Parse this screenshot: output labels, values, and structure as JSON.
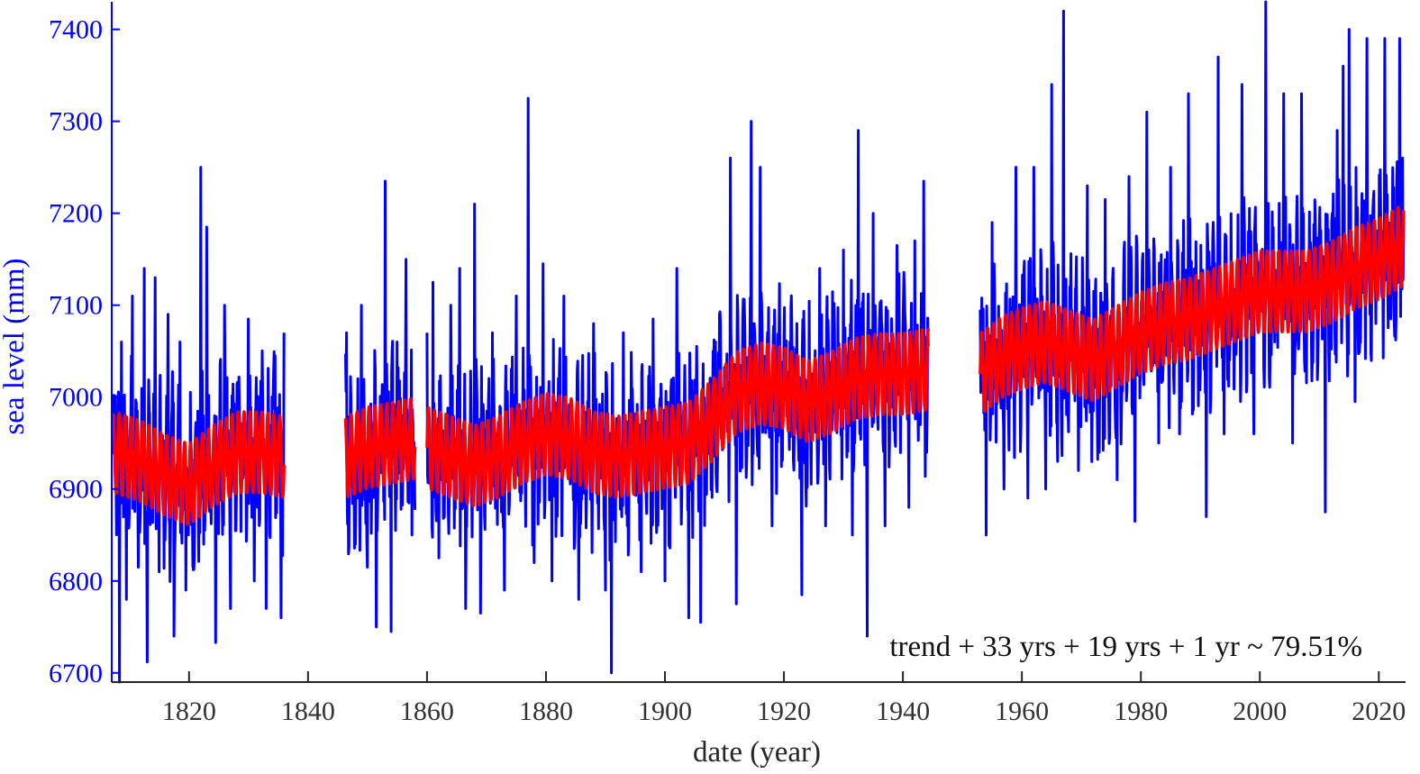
{
  "chart_data": {
    "type": "line",
    "title": "",
    "xlabel": "date (year)",
    "ylabel": "sea level (mm)",
    "xlim": [
      1807,
      2024.5
    ],
    "ylim": [
      6690,
      7430
    ],
    "x_ticks": [
      1820,
      1840,
      1860,
      1880,
      1900,
      1920,
      1940,
      1960,
      1980,
      2000,
      2020
    ],
    "y_ticks": [
      6700,
      6800,
      6900,
      7000,
      7100,
      7200,
      7300,
      7400
    ],
    "grid": false,
    "annotation": "trend + 33 yrs + 19 yrs + 1 yr ~ 79.51%",
    "colors": {
      "observed": "#0000ff",
      "model": "#ff0000",
      "axis_y": "#0000ff",
      "axis_x": "#262626"
    },
    "series": [
      {
        "role": "observed",
        "color": "#0000ff",
        "segments": [
          [
            1807.3,
            1836.0
          ],
          [
            1846.3,
            1858.0
          ],
          [
            1860.0,
            1944.3
          ],
          [
            1953.0,
            2024.2
          ]
        ],
        "points": [
          [
            1807.5,
            6940
          ],
          [
            1808.3,
            6690
          ],
          [
            1808.6,
            7060
          ],
          [
            1809.5,
            6780
          ],
          [
            1810.5,
            7110
          ],
          [
            1811.5,
            6815
          ],
          [
            1812.5,
            7140
          ],
          [
            1813.0,
            6712
          ],
          [
            1814.3,
            7130
          ],
          [
            1815.0,
            6810
          ],
          [
            1816.5,
            7090
          ],
          [
            1817.5,
            6740
          ],
          [
            1818.5,
            7060
          ],
          [
            1819.5,
            6790
          ],
          [
            1822.0,
            7250
          ],
          [
            1822.5,
            6840
          ],
          [
            1823.0,
            7185
          ],
          [
            1824.5,
            6733
          ],
          [
            1826.0,
            7100
          ],
          [
            1827.0,
            6770
          ],
          [
            1830.0,
            7085
          ],
          [
            1831.0,
            6800
          ],
          [
            1833.0,
            6770
          ],
          [
            1834.5,
            7045
          ],
          [
            1835.5,
            6760
          ],
          [
            1836.0,
            7070
          ],
          [
            1846.5,
            7070
          ],
          [
            1848.0,
            6840
          ],
          [
            1849.0,
            7100
          ],
          [
            1850.0,
            6815
          ],
          [
            1851.5,
            6750
          ],
          [
            1853.0,
            7235
          ],
          [
            1854.0,
            6745
          ],
          [
            1855.0,
            7060
          ],
          [
            1856.5,
            7150
          ],
          [
            1857.5,
            6850
          ],
          [
            1860.0,
            7070
          ],
          [
            1860.8,
            6860
          ],
          [
            1861.0,
            7125
          ],
          [
            1862.0,
            6825
          ],
          [
            1864.0,
            7100
          ],
          [
            1865.5,
            7140
          ],
          [
            1866.5,
            6770
          ],
          [
            1868.0,
            7210
          ],
          [
            1869.0,
            6765
          ],
          [
            1871.0,
            7070
          ],
          [
            1873.0,
            6790
          ],
          [
            1875.0,
            7110
          ],
          [
            1877.0,
            7325
          ],
          [
            1878.0,
            6820
          ],
          [
            1879.5,
            7145
          ],
          [
            1881.0,
            6800
          ],
          [
            1883.0,
            7110
          ],
          [
            1885.5,
            6780
          ],
          [
            1888.0,
            7080
          ],
          [
            1890.0,
            6790
          ],
          [
            1891.0,
            6700
          ],
          [
            1893.0,
            7070
          ],
          [
            1896.0,
            6810
          ],
          [
            1898.0,
            7085
          ],
          [
            1900.0,
            6800
          ],
          [
            1902.0,
            7140
          ],
          [
            1904.0,
            6760
          ],
          [
            1906.0,
            6755
          ],
          [
            1908.5,
            7060
          ],
          [
            1911.0,
            7260
          ],
          [
            1912.0,
            6775
          ],
          [
            1914.5,
            7300
          ],
          [
            1916.0,
            7250
          ],
          [
            1918.0,
            6860
          ],
          [
            1921.0,
            7060
          ],
          [
            1923.0,
            6785
          ],
          [
            1926.0,
            7140
          ],
          [
            1927.0,
            6860
          ],
          [
            1930.0,
            7160
          ],
          [
            1931.5,
            6850
          ],
          [
            1932.5,
            7290
          ],
          [
            1934.0,
            6740
          ],
          [
            1935.0,
            7200
          ],
          [
            1937.0,
            6860
          ],
          [
            1939.0,
            7165
          ],
          [
            1941.0,
            6880
          ],
          [
            1942.0,
            7170
          ],
          [
            1943.5,
            7235
          ],
          [
            1944.0,
            6940
          ],
          [
            1953.0,
            7095
          ],
          [
            1954.0,
            6850
          ],
          [
            1955.0,
            7190
          ],
          [
            1957.0,
            6900
          ],
          [
            1959.0,
            7250
          ],
          [
            1961.0,
            6890
          ],
          [
            1962.0,
            7250
          ],
          [
            1964.0,
            6900
          ],
          [
            1965.0,
            7340
          ],
          [
            1966.0,
            6930
          ],
          [
            1967.0,
            7420
          ],
          [
            1969.5,
            6920
          ],
          [
            1971.0,
            7230
          ],
          [
            1973.0,
            6940
          ],
          [
            1974.0,
            7215
          ],
          [
            1976.0,
            6910
          ],
          [
            1978.0,
            7240
          ],
          [
            1979.0,
            6865
          ],
          [
            1981.0,
            7310
          ],
          [
            1983.0,
            6950
          ],
          [
            1985.0,
            7250
          ],
          [
            1986.5,
            6960
          ],
          [
            1988.0,
            7330
          ],
          [
            1991.0,
            6870
          ],
          [
            1993.0,
            7370
          ],
          [
            1994.0,
            6960
          ],
          [
            1997.0,
            7340
          ],
          [
            1999.0,
            6960
          ],
          [
            2001.0,
            7430
          ],
          [
            2002.5,
            7060
          ],
          [
            2004.0,
            7330
          ],
          [
            2005.5,
            6950
          ],
          [
            2007.0,
            7330
          ],
          [
            2009.0,
            7100
          ],
          [
            2011.0,
            6875
          ],
          [
            2013.0,
            7290
          ],
          [
            2014.0,
            7360
          ],
          [
            2015.0,
            7400
          ],
          [
            2016.0,
            6995
          ],
          [
            2018.0,
            7390
          ],
          [
            2019.5,
            7080
          ],
          [
            2021.0,
            7390
          ],
          [
            2022.0,
            7085
          ],
          [
            2023.5,
            7390
          ],
          [
            2024.0,
            7260
          ]
        ]
      },
      {
        "role": "model",
        "color": "#ff0000",
        "segments": [
          [
            1807.3,
            1836.0
          ],
          [
            1846.3,
            1858.0
          ],
          [
            1860.0,
            1944.3
          ],
          [
            1953.0,
            2024.2
          ]
        ],
        "points": [
          [
            1807.5,
            6940
          ],
          [
            1812.0,
            6930
          ],
          [
            1816.0,
            6915
          ],
          [
            1820.0,
            6905
          ],
          [
            1824.0,
            6925
          ],
          [
            1828.0,
            6940
          ],
          [
            1832.0,
            6940
          ],
          [
            1836.0,
            6935
          ],
          [
            1846.5,
            6935
          ],
          [
            1850.0,
            6945
          ],
          [
            1854.0,
            6950
          ],
          [
            1858.0,
            6955
          ],
          [
            1860.0,
            6945
          ],
          [
            1864.0,
            6935
          ],
          [
            1868.0,
            6925
          ],
          [
            1872.0,
            6935
          ],
          [
            1876.0,
            6950
          ],
          [
            1880.0,
            6960
          ],
          [
            1884.0,
            6955
          ],
          [
            1888.0,
            6940
          ],
          [
            1892.0,
            6935
          ],
          [
            1896.0,
            6940
          ],
          [
            1900.0,
            6945
          ],
          [
            1904.0,
            6950
          ],
          [
            1908.0,
            6975
          ],
          [
            1912.0,
            7005
          ],
          [
            1916.0,
            7015
          ],
          [
            1920.0,
            7010
          ],
          [
            1924.0,
            6995
          ],
          [
            1928.0,
            7005
          ],
          [
            1932.0,
            7020
          ],
          [
            1936.0,
            7025
          ],
          [
            1940.0,
            7025
          ],
          [
            1944.0,
            7030
          ],
          [
            1953.0,
            7025
          ],
          [
            1957.0,
            7045
          ],
          [
            1961.0,
            7055
          ],
          [
            1964.0,
            7060
          ],
          [
            1968.0,
            7050
          ],
          [
            1972.0,
            7040
          ],
          [
            1976.0,
            7055
          ],
          [
            1980.0,
            7070
          ],
          [
            1984.0,
            7080
          ],
          [
            1988.0,
            7085
          ],
          [
            1992.0,
            7095
          ],
          [
            1996.0,
            7105
          ],
          [
            2000.0,
            7115
          ],
          [
            2004.0,
            7115
          ],
          [
            2008.0,
            7115
          ],
          [
            2012.0,
            7125
          ],
          [
            2016.0,
            7140
          ],
          [
            2020.0,
            7150
          ],
          [
            2024.0,
            7165
          ]
        ]
      }
    ]
  }
}
